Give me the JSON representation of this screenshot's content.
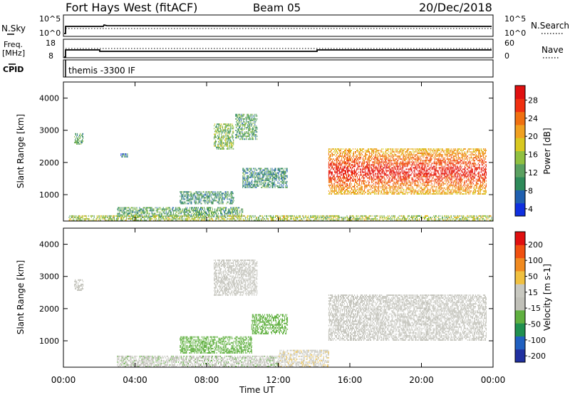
{
  "header": {
    "station": "Fort Hays West (fitACF)",
    "beam": "Beam 05",
    "date": "20/Dec/2018"
  },
  "param_panels": {
    "nsky_label": "N.Sky",
    "nsky_ticks": [
      "10^5",
      "10^0"
    ],
    "nsearch_label": "N.Search",
    "nsearch_ticks": [
      "10^5",
      "10^0"
    ],
    "freq_label_1": "Freq.",
    "freq_label_2": "[MHz]",
    "freq_ticks": [
      "18",
      "8"
    ],
    "nave_label": "Nave",
    "nave_ticks": [
      "60",
      "0"
    ],
    "cpid_label": "CPID",
    "cpid_text": "themis -3300 IF"
  },
  "colors": {
    "power": [
      "#1030e0",
      "#2060b0",
      "#2e8a5a",
      "#5aa060",
      "#90c040",
      "#d8c820",
      "#f0a020",
      "#f07010",
      "#f03010",
      "#e01010"
    ],
    "velocity": [
      "#2030a0",
      "#2060c0",
      "#209050",
      "#60b040",
      "#c0c0b8",
      "#c8c8c0",
      "#f0c040",
      "#f08a20",
      "#f05010",
      "#e01010"
    ]
  },
  "chart_data": [
    {
      "type": "heatmap",
      "name": "power",
      "ylabel": "Slant Range [km]",
      "xlabel": "",
      "x_ticks": [
        "00:00",
        "04:00",
        "08:00",
        "12:00",
        "16:00",
        "20:00",
        "00:00"
      ],
      "y_ticks": [
        "4000",
        "3000",
        "2000",
        "1000"
      ],
      "ylim": [
        180,
        4500
      ],
      "xlim_hours": [
        0,
        24
      ],
      "colorbar_label": "Power [dB]",
      "colorbar_ticks": [
        "28",
        "24",
        "20",
        "16",
        "12",
        "8",
        "4"
      ],
      "colorbar_range": [
        0,
        30
      ],
      "regions": [
        {
          "t0": 0.6,
          "t1": 1.1,
          "r0": 2550,
          "r1": 2900,
          "v": 10
        },
        {
          "t0": 3.2,
          "t1": 3.6,
          "r0": 2150,
          "r1": 2250,
          "v": 6
        },
        {
          "t0": 8.4,
          "t1": 9.5,
          "r0": 2400,
          "r1": 3200,
          "v": 12
        },
        {
          "t0": 9.6,
          "t1": 10.8,
          "r0": 2700,
          "r1": 3500,
          "v": 10
        },
        {
          "t0": 6.5,
          "t1": 9.5,
          "r0": 700,
          "r1": 1100,
          "v": 8
        },
        {
          "t0": 10.0,
          "t1": 12.5,
          "r0": 1200,
          "r1": 1800,
          "v": 8
        },
        {
          "t0": 3.0,
          "t1": 10.0,
          "r0": 300,
          "r1": 600,
          "v": 10
        },
        {
          "t0": 0.3,
          "t1": 24.0,
          "r0": 180,
          "r1": 330,
          "v": 14
        },
        {
          "t0": 14.8,
          "t1": 23.6,
          "r0": 1000,
          "r1": 2400,
          "v": 18
        }
      ]
    },
    {
      "type": "heatmap",
      "name": "velocity",
      "ylabel": "Slant Range [km]",
      "xlabel": "Time UT",
      "x_ticks": [
        "00:00",
        "04:00",
        "08:00",
        "12:00",
        "16:00",
        "20:00",
        "00:00"
      ],
      "y_ticks": [
        "4000",
        "3000",
        "2000",
        "1000"
      ],
      "ylim": [
        180,
        4500
      ],
      "xlim_hours": [
        0,
        24
      ],
      "colorbar_label": "Velocity [m s-1]",
      "colorbar_ticks": [
        "200",
        "100",
        "50",
        "15",
        "-15",
        "-50",
        "-100",
        "-200"
      ],
      "colorbar_range": [
        -250,
        250
      ],
      "regions": [
        {
          "t0": 0.6,
          "t1": 1.1,
          "r0": 2550,
          "r1": 2900,
          "v": 0
        },
        {
          "t0": 8.4,
          "t1": 10.8,
          "r0": 2400,
          "r1": 3500,
          "v": 0
        },
        {
          "t0": 6.5,
          "t1": 10.5,
          "r0": 600,
          "r1": 1100,
          "v": -80
        },
        {
          "t0": 10.5,
          "t1": 12.5,
          "r0": 1200,
          "r1": 1800,
          "v": -80
        },
        {
          "t0": 3.0,
          "t1": 12.0,
          "r0": 180,
          "r1": 500,
          "v": -40
        },
        {
          "t0": 12.0,
          "t1": 14.8,
          "r0": 180,
          "r1": 700,
          "v": 40
        },
        {
          "t0": 14.8,
          "t1": 23.6,
          "r0": 1000,
          "r1": 2400,
          "v": 0
        }
      ]
    }
  ]
}
